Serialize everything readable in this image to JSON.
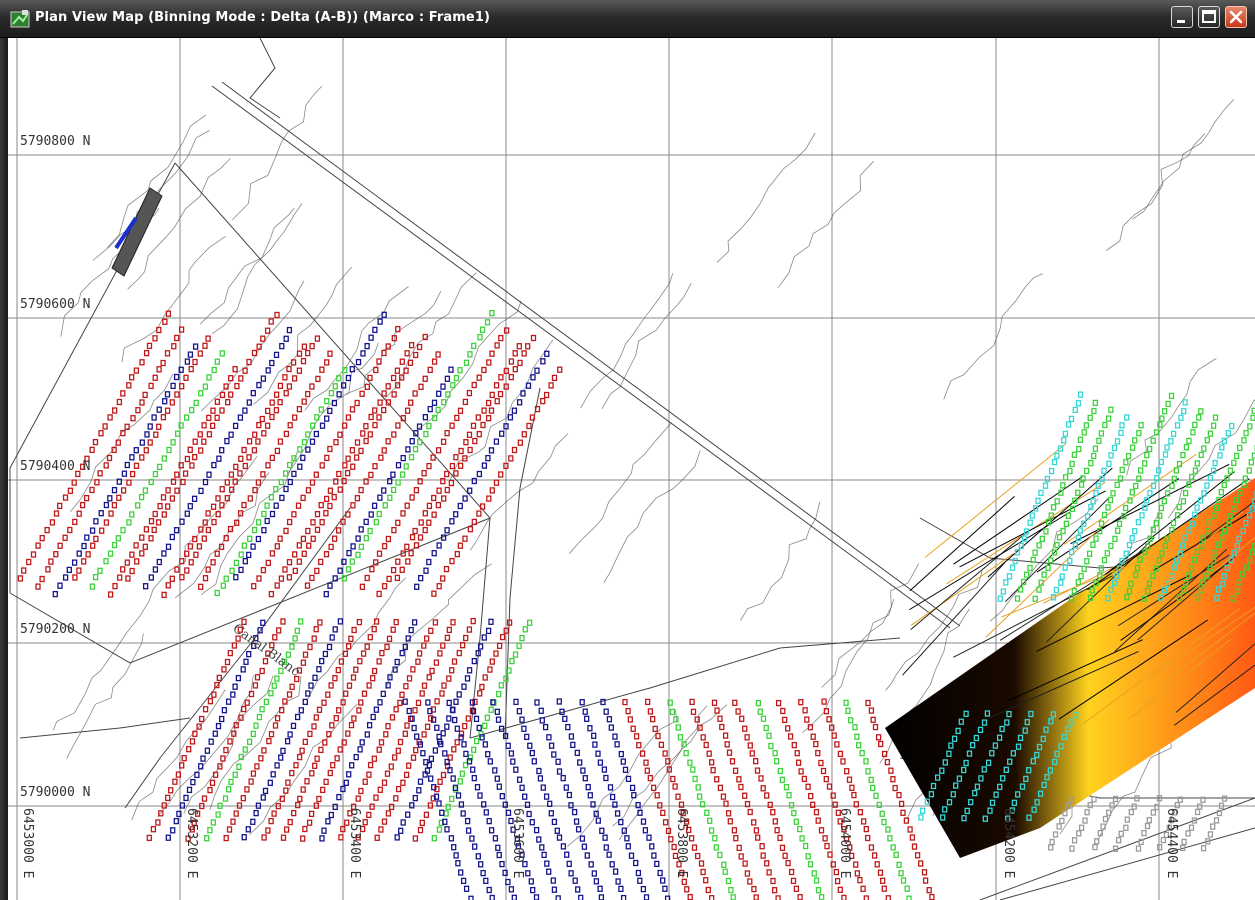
{
  "window": {
    "title": "Plan View Map (Binning Mode : Delta (A-B))  (Marco : Frame1)"
  },
  "map": {
    "northing_labels": [
      "5790800 N",
      "5790600 N",
      "5790400 N",
      "5790200 N",
      "5790000 N"
    ],
    "easting_labels": [
      "6453000 E",
      "6453200 E",
      "6453400 E",
      "6453600 E",
      "6453800 E",
      "6454000 E",
      "6454200 E",
      "6454400 E"
    ],
    "canal_label": "Canal Blanc",
    "colors": {
      "grid": "#888888",
      "contour": "#555555",
      "track_red": "#c01818",
      "track_blue": "#14148c",
      "track_green": "#3dd23d",
      "track_cyan": "#36d6d6",
      "track_gray": "#9a9a9a",
      "survey_black": "#000000",
      "survey_orange": "#ff5a14",
      "survey_yellow": "#ffd21e"
    }
  }
}
